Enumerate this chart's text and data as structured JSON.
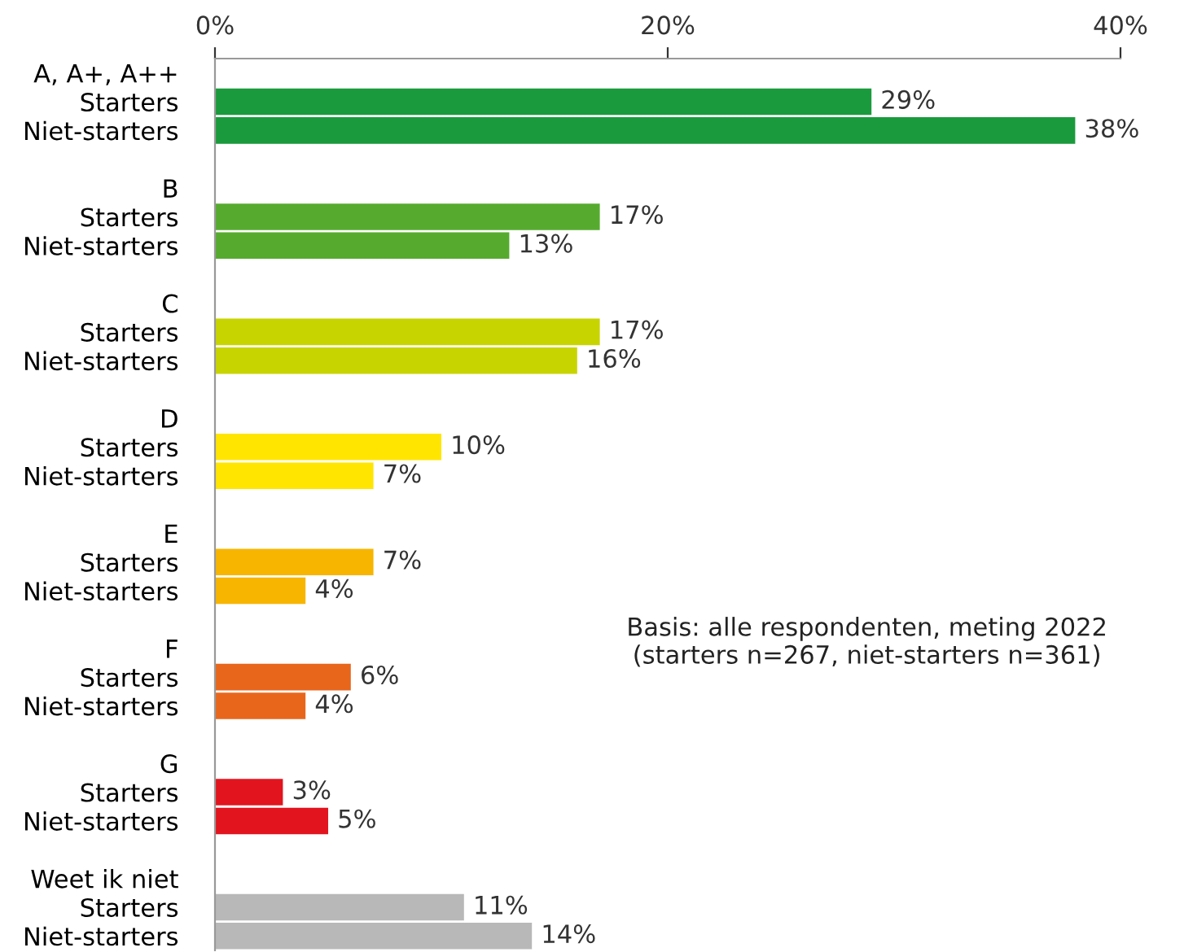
{
  "chart_data": {
    "type": "bar",
    "orientation": "horizontal",
    "categories": [
      "A, A+, A++",
      "Starters",
      "Niet-starters",
      "B",
      "Starters",
      "Niet-starters",
      "C",
      "Starters",
      "Niet-starters",
      "D",
      "Starters",
      "Niet-starters",
      "E",
      "Starters",
      "Niet-starters",
      "F",
      "Starters",
      "Niet-starters",
      "G",
      "Starters",
      "Niet-starters",
      "Weet ik niet",
      "Starters",
      "Niet-starters"
    ],
    "values": [
      null,
      29,
      38,
      null,
      17,
      13,
      null,
      17,
      16,
      null,
      10,
      7,
      null,
      7,
      4,
      null,
      6,
      4,
      null,
      3,
      5,
      null,
      11,
      14
    ],
    "value_labels": [
      null,
      "29%",
      "38%",
      null,
      "17%",
      "13%",
      null,
      "17%",
      "16%",
      null,
      "10%",
      "7%",
      null,
      "7%",
      "4%",
      null,
      "6%",
      "4%",
      null,
      "3%",
      "5%",
      null,
      "11%",
      "14%"
    ],
    "colors": [
      null,
      "#1a9a3c",
      "#1a9a3c",
      null,
      "#56ab2f",
      "#56ab2f",
      null,
      "#c8d400",
      "#c8d400",
      null,
      "#ffe500",
      "#ffe500",
      null,
      "#f7b500",
      "#f7b500",
      null,
      "#e8661c",
      "#e8661c",
      null,
      "#e2141e",
      "#e2141e",
      null,
      "#b8b8b8",
      "#b8b8b8"
    ],
    "xlim": [
      0,
      40
    ],
    "xticks": [
      {
        "value": 0,
        "label": "0%"
      },
      {
        "value": 20,
        "label": "20%"
      },
      {
        "value": 40,
        "label": "40%"
      }
    ],
    "grid": false,
    "legend": false,
    "annotations": [
      "Basis: alle respondenten, meting 2022\n(starters n=267, niet-starters n=361)"
    ]
  }
}
